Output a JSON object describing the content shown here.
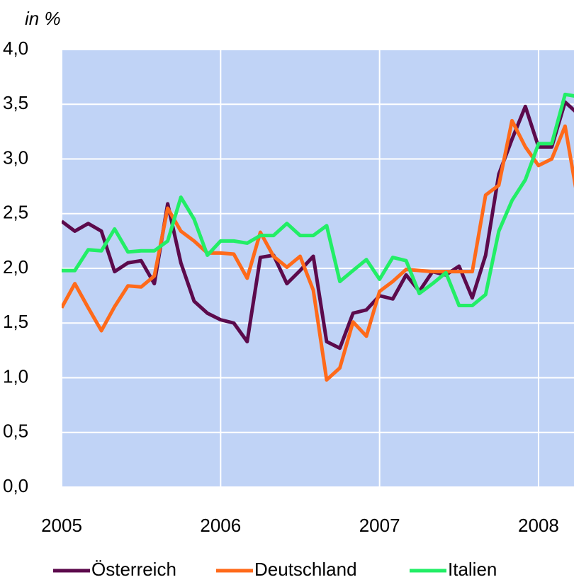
{
  "chart_data": {
    "type": "line",
    "y_label": "in %",
    "x": [
      2005,
      2005.083,
      2005.167,
      2005.25,
      2005.333,
      2005.417,
      2005.5,
      2005.583,
      2005.667,
      2005.75,
      2005.833,
      2005.917,
      2006,
      2006.083,
      2006.167,
      2006.25,
      2006.333,
      2006.417,
      2006.5,
      2006.583,
      2006.667,
      2006.75,
      2006.833,
      2006.917,
      2007,
      2007.083,
      2007.167,
      2007.25,
      2007.333,
      2007.417,
      2007.5,
      2007.583,
      2007.667,
      2007.75,
      2007.833,
      2007.917,
      2008,
      2008.083,
      2008.167,
      2008.25
    ],
    "series": [
      {
        "name": "Österreich",
        "color": "#5c0a4c",
        "values": [
          2.43,
          2.34,
          2.41,
          2.34,
          1.97,
          2.05,
          2.07,
          1.86,
          2.59,
          2.05,
          1.7,
          1.59,
          1.53,
          1.5,
          1.33,
          2.1,
          2.12,
          1.86,
          1.98,
          2.11,
          1.33,
          1.27,
          1.59,
          1.62,
          1.75,
          1.72,
          1.94,
          1.79,
          1.97,
          1.94,
          2.02,
          1.73,
          2.12,
          2.86,
          3.18,
          3.48,
          3.11,
          3.11,
          3.52,
          3.41
        ]
      },
      {
        "name": "Deutschland",
        "color": "#ff6a1a",
        "values": [
          1.64,
          1.86,
          1.64,
          1.43,
          1.65,
          1.84,
          1.83,
          1.93,
          2.55,
          2.34,
          2.25,
          2.14,
          2.14,
          2.13,
          1.91,
          2.33,
          2.11,
          2.01,
          2.11,
          1.8,
          0.98,
          1.09,
          1.51,
          1.38,
          1.79,
          1.88,
          1.99,
          1.98,
          1.97,
          1.97,
          1.97,
          1.97,
          2.67,
          2.76,
          3.35,
          3.11,
          2.94,
          3.0,
          3.3,
          2.6
        ]
      },
      {
        "name": "Italien",
        "color": "#22ee66",
        "values": [
          1.98,
          1.98,
          2.17,
          2.16,
          2.36,
          2.15,
          2.16,
          2.16,
          2.25,
          2.65,
          2.45,
          2.12,
          2.25,
          2.25,
          2.23,
          2.3,
          2.3,
          2.41,
          2.3,
          2.3,
          2.39,
          1.88,
          1.98,
          2.08,
          1.9,
          2.1,
          2.07,
          1.77,
          1.86,
          1.96,
          1.66,
          1.66,
          1.76,
          2.34,
          2.62,
          2.81,
          3.14,
          3.14,
          3.59,
          3.57
        ]
      }
    ],
    "xlim": [
      2005,
      2008.223
    ],
    "xticks": [
      2005,
      2006,
      2007,
      2008
    ],
    "ylim": [
      0,
      4
    ],
    "yticks": [
      {
        "value": 0,
        "label": "0,0"
      },
      {
        "value": 0.5,
        "label": "0,5"
      },
      {
        "value": 1,
        "label": "1,0"
      },
      {
        "value": 1.5,
        "label": "1,5"
      },
      {
        "value": 2,
        "label": "2,0"
      },
      {
        "value": 2.5,
        "label": "2,5"
      },
      {
        "value": 3,
        "label": "3,0"
      },
      {
        "value": 3.5,
        "label": "3,5"
      },
      {
        "value": 4,
        "label": "4,0"
      }
    ],
    "grid": true,
    "plot_color": "#c0d3f6",
    "legend": "bottom"
  }
}
